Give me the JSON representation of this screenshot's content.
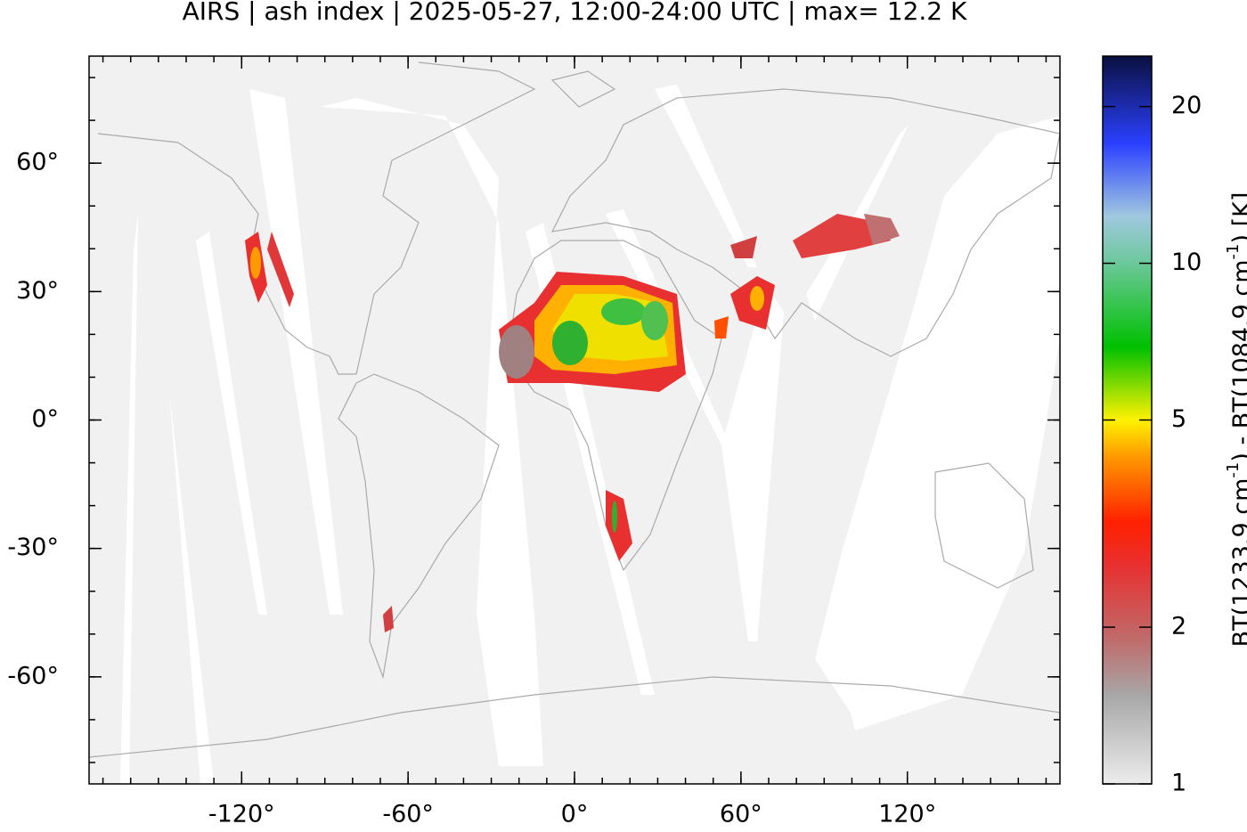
{
  "chart_data": {
    "type": "map",
    "title": "AIRS | ash index | 2025-05-27, 12:00-24:00 UTC | max= 12.2 K",
    "xlim": [
      -175,
      175
    ],
    "ylim": [
      -85,
      85
    ],
    "xticks": [
      {
        "value": -120,
        "label": "-120°"
      },
      {
        "value": -60,
        "label": "-60°"
      },
      {
        "value": 0,
        "label": "0°"
      },
      {
        "value": 60,
        "label": "60°"
      },
      {
        "value": 120,
        "label": "120°"
      }
    ],
    "yticks": [
      {
        "value": 60,
        "label": "60°"
      },
      {
        "value": 30,
        "label": "30°"
      },
      {
        "value": 0,
        "label": "0°"
      },
      {
        "value": -30,
        "label": "-30°"
      },
      {
        "value": -60,
        "label": "-60°"
      }
    ],
    "xminor_step": 10,
    "yminor_step": 10,
    "colorbar": {
      "log_scale": true,
      "lim": [
        1,
        25
      ],
      "ticks": [
        1,
        2,
        5,
        10,
        20
      ],
      "label": [
        "BT(1233.9 cm",
        "-1",
        ") - BT(1084.9 cm",
        "-1",
        ") [K]"
      ]
    }
  }
}
